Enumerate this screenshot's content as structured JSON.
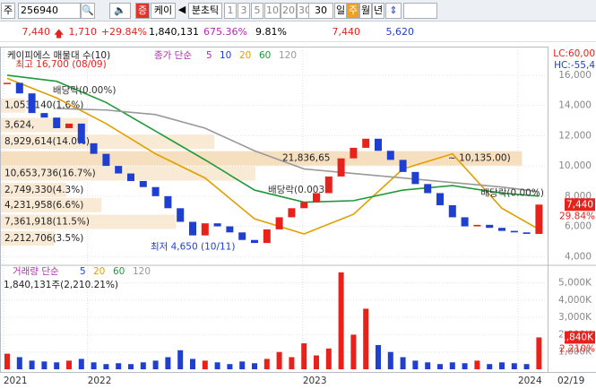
{
  "toolbar": {
    "market": "주",
    "code": "256940",
    "tag": "증",
    "name": "케이",
    "prev": "◀",
    "intraday": "분초틱",
    "periods": [
      "1",
      "3",
      "5",
      "10",
      "20",
      "30"
    ],
    "period_select": "30",
    "spans": [
      "일",
      "주",
      "월",
      "년"
    ]
  },
  "quote": {
    "price": "7,440",
    "change": "1,710",
    "change_pct": "+29.84%",
    "volume": "1,840,131",
    "volume_pct": "675.36%",
    "turnover": "9.81%",
    "high": "7,440",
    "low": "5,620"
  },
  "chart_data": {
    "type": "candlestick",
    "title": "케이피에스 매물대 수(10)",
    "ma_legend": {
      "label": "종가 단순",
      "periods": [
        {
          "text": "5",
          "color": "#b02cb0"
        },
        {
          "text": "10",
          "color": "#1f3fd0"
        },
        {
          "text": "20",
          "color": "#e0a000"
        },
        {
          "text": "60",
          "color": "#1f9a3a"
        },
        {
          "text": "120",
          "color": "#999999"
        }
      ]
    },
    "close": [
      15500,
      14800,
      13500,
      13200,
      12500,
      12800,
      11500,
      10800,
      10000,
      9500,
      9000,
      8600,
      8000,
      7200,
      6300,
      5400,
      6200,
      6000,
      5600,
      5100,
      4900,
      5800,
      6600,
      7200,
      7600,
      8200,
      9300,
      10500,
      11200,
      11800,
      11000,
      10400,
      9600,
      8800,
      8200,
      7400,
      6600,
      6000,
      6100,
      5900,
      5700,
      5600,
      5500,
      7440
    ],
    "up_color": "#e8221b",
    "down_color": "#1f3fd0",
    "ma_x": [
      0,
      4,
      8,
      12,
      16,
      20,
      24,
      28,
      32,
      36,
      40,
      43
    ],
    "ma_series": [
      {
        "name": "20",
        "color": "#e0a000",
        "values": [
          15800,
          14500,
          12800,
          10800,
          9200,
          6500,
          5500,
          6800,
          9800,
          10800,
          7200,
          5800
        ]
      },
      {
        "name": "60",
        "color": "#1f9a3a",
        "values": [
          16000,
          15600,
          14200,
          12300,
          10400,
          8400,
          7600,
          7700,
          8400,
          8700,
          8200,
          8000
        ]
      },
      {
        "name": "120",
        "color": "#999999",
        "values": [
          null,
          13800,
          13700,
          13400,
          12500,
          11000,
          9800,
          9500,
          9200,
          8900,
          8600,
          8300
        ]
      }
    ],
    "ylim": [
      3600,
      17600
    ],
    "yticks": [
      {
        "value": 4000,
        "label": "4,000"
      },
      {
        "value": 6000,
        "label": "6,000"
      },
      {
        "value": 8000,
        "label": "8,000"
      },
      {
        "value": 10000,
        "label": "10,000"
      },
      {
        "value": 12000,
        "label": "12,000"
      },
      {
        "value": 14000,
        "label": "14,000"
      },
      {
        "value": 16000,
        "label": "16,000"
      }
    ],
    "volume_profile": [
      {
        "label": "1,053,140(1.6%)",
        "pct": 1.6,
        "price": 14000
      },
      {
        "label": "3,624,",
        "pct": 5.7,
        "price": 12700
      },
      {
        "label": "8,929,614(14.0%)",
        "pct": 14.0,
        "price": 11600
      },
      {
        "label": "21,836,65",
        "pct": 34.2,
        "price": 10500
      },
      {
        "label": "10,653,736(16.7%)",
        "pct": 16.7,
        "price": 9500
      },
      {
        "label": "2,749,330(4.3%)",
        "pct": 4.3,
        "price": 8400
      },
      {
        "label": "4,231,958(6.6%)",
        "pct": 6.6,
        "price": 7400
      },
      {
        "label": "7,361,918(11.5%)",
        "pct": 11.5,
        "price": 6300
      },
      {
        "label": "2,212,706(3.5%)",
        "pct": 3.5,
        "price": 5200
      }
    ],
    "profile_range": "~ 10,135.00)",
    "annotations": [
      {
        "text": "최고 16,700 (08/09)",
        "index": 0.4,
        "price": 16700,
        "color": "#e8221b"
      },
      {
        "text": "최저 4,650 (10/11)",
        "index": 11.3,
        "price": 4650,
        "color": "#1f3fd0"
      },
      {
        "text": "배당락(0.00%)",
        "index": 3.4,
        "price": 15000,
        "color": "#333333"
      },
      {
        "text": "배당락(0.003",
        "index": 20.8,
        "price": 8400,
        "color": "#333333"
      },
      {
        "text": "배당락(0.00%)",
        "index": 38,
        "price": 8200,
        "color": "#333333"
      }
    ],
    "last_price": {
      "value": 7440,
      "label": "7,440"
    },
    "last_pct": "29.84%",
    "lc": "LC:60,00",
    "hc": "HC:-55,4",
    "volume": {
      "legend_label": "거래량 단순",
      "legend_periods": [
        {
          "text": "5",
          "color": "#1f3fd0"
        },
        {
          "text": "20",
          "color": "#e0a000"
        },
        {
          "text": "60",
          "color": "#1f9a3a"
        },
        {
          "text": "120",
          "color": "#999999"
        }
      ],
      "info": "1,840,131주(2,210.21%)",
      "values": [
        900000,
        700000,
        500000,
        450000,
        400000,
        500000,
        600000,
        400000,
        300000,
        350000,
        300000,
        400000,
        500000,
        700000,
        1100000,
        600000,
        500000,
        400000,
        300000,
        450000,
        350000,
        600000,
        1000000,
        700000,
        1500000,
        800000,
        1200000,
        5600000,
        2000000,
        3500000,
        1400000,
        1000000,
        700000,
        500000,
        400000,
        300000,
        400000,
        350000,
        500000,
        300000,
        400000,
        350000,
        300000,
        1840131
      ],
      "ylim": [
        0,
        5800000
      ],
      "yticks": [
        {
          "value": 1000000,
          "label": "1,000K"
        },
        {
          "value": 2000000,
          "label": "2,000K"
        },
        {
          "value": 3000000,
          "label": "3,000K"
        },
        {
          "value": 4000000,
          "label": "4,000K"
        },
        {
          "value": 5000000,
          "label": "5,000K"
        }
      ],
      "last_label": "1,840K",
      "last_pct": "2,210%"
    },
    "xticks": [
      {
        "value": -0.3,
        "label": "2021"
      },
      {
        "value": 6.5,
        "label": "2022"
      },
      {
        "value": 23.9,
        "label": "2023"
      },
      {
        "value": 41.3,
        "label": "2024"
      }
    ],
    "last_date": "02/19"
  }
}
